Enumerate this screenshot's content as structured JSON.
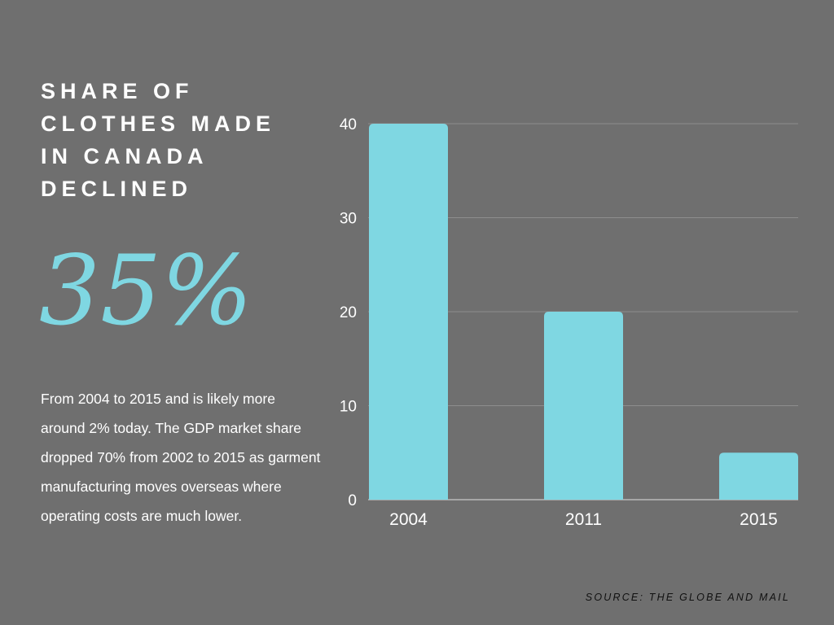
{
  "headline": "Share of clothes made in Canada declined",
  "stat": "35%",
  "description": "From 2004 to 2015 and is likely more around 2% today.  The GDP market share dropped 70% from 2002 to 2015 as garment manufacturing moves overseas where operating costs are much lower.",
  "source": "Source: The Globe and Mail",
  "colors": {
    "background": "#6f6f6f",
    "accent": "#7fd7e2"
  },
  "chart_data": {
    "type": "bar",
    "categories": [
      "2004",
      "2011",
      "2015"
    ],
    "values": [
      40,
      20,
      5
    ],
    "title": "",
    "xlabel": "",
    "ylabel": "",
    "ylim": [
      0,
      40
    ],
    "yticks": [
      0,
      10,
      20,
      30,
      40
    ],
    "grid": true,
    "legend": "none"
  }
}
